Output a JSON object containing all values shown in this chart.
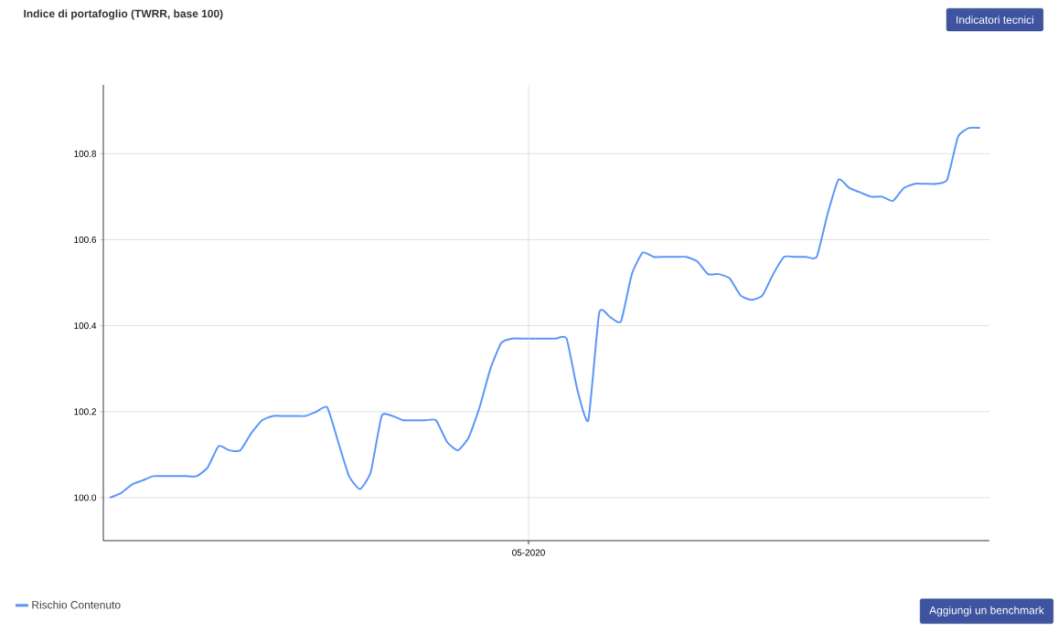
{
  "chart_data": {
    "type": "line",
    "title": "Indice di portafoglio (TWRR, base 100)",
    "categories": [
      null,
      null,
      null,
      null,
      null,
      null,
      null,
      null,
      null,
      null,
      null,
      null,
      null,
      null,
      null,
      null,
      null,
      null,
      null,
      null,
      null,
      null,
      null,
      null,
      null,
      null,
      null,
      null,
      null,
      null,
      null,
      null,
      null,
      null,
      null,
      null,
      null,
      null,
      null,
      null,
      null,
      null,
      null,
      null,
      null,
      null,
      null,
      null,
      null,
      null,
      null,
      null,
      null,
      null,
      null,
      null,
      null,
      null,
      null,
      null,
      null,
      null,
      null,
      null,
      null,
      null,
      null,
      null,
      null,
      null,
      null,
      null,
      null,
      null,
      null,
      null,
      null,
      null,
      null,
      null,
      null
    ],
    "series": [
      {
        "name": "Rischio Contenuto",
        "color": "#5b96f7",
        "values": [
          100.0,
          100.01,
          100.03,
          100.04,
          100.05,
          100.05,
          100.05,
          100.05,
          100.05,
          100.07,
          100.12,
          100.11,
          100.11,
          100.15,
          100.18,
          100.19,
          100.19,
          100.19,
          100.19,
          100.2,
          100.21,
          100.13,
          100.05,
          100.02,
          100.06,
          100.19,
          100.19,
          100.18,
          100.18,
          100.18,
          100.18,
          100.13,
          100.11,
          100.14,
          100.21,
          100.3,
          100.36,
          100.37,
          100.37,
          100.37,
          100.37,
          100.37,
          100.37,
          100.25,
          100.18,
          100.43,
          100.42,
          100.41,
          100.52,
          100.57,
          100.56,
          100.56,
          100.56,
          100.56,
          100.55,
          100.52,
          100.52,
          100.51,
          100.47,
          100.46,
          100.47,
          100.52,
          100.56,
          100.56,
          100.56,
          100.56,
          100.66,
          100.74,
          100.72,
          100.71,
          100.7,
          100.7,
          100.69,
          100.72,
          100.73,
          100.73,
          100.73,
          100.74,
          100.84,
          100.86,
          100.86
        ]
      }
    ],
    "ylim": [
      99.9,
      100.96
    ],
    "yticks": [
      {
        "value": 100.0,
        "label": "100.0"
      },
      {
        "value": 100.2,
        "label": "100.2"
      },
      {
        "value": 100.4,
        "label": "100.4"
      },
      {
        "value": 100.6,
        "label": "100.6"
      },
      {
        "value": 100.8,
        "label": "100.8"
      }
    ],
    "grid": "y",
    "legend": "bottom left",
    "marker": "none",
    "line_style": "solid",
    "annotations": [
      "Indicatori tecnici",
      "Aggiungi un benchmark",
      "05-2020"
    ]
  }
}
